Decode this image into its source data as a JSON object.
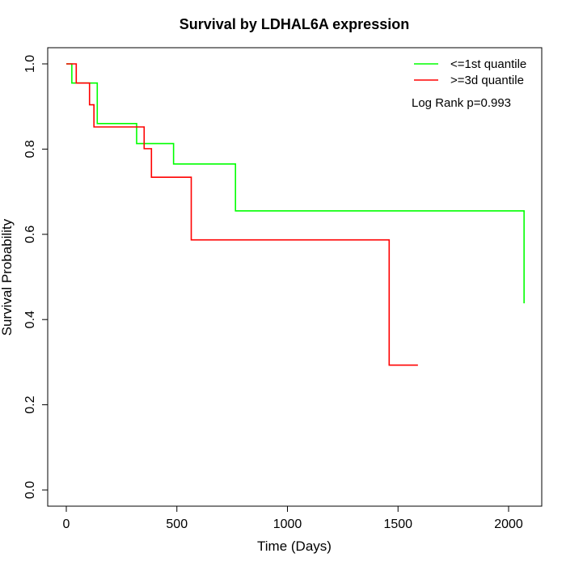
{
  "chart_data": {
    "type": "line",
    "step": true,
    "title": "Survival by LDHAL6A expression",
    "xlabel": "Time (Days)",
    "ylabel": "Survival Probability",
    "xlim": [
      0,
      2070
    ],
    "ylim": [
      0,
      1.0
    ],
    "xticks": [
      "0",
      "500",
      "1000",
      "1500",
      "2000"
    ],
    "yticks": [
      "0.0",
      "0.2",
      "0.4",
      "0.6",
      "0.8",
      "1.0"
    ],
    "legend_position": "top-right",
    "annotation": "Log Rank p=0.993",
    "series": [
      {
        "name": "<=1st quantile",
        "color": "#00ff00",
        "x": [
          0,
          25,
          135,
          140,
          305,
          318,
          485,
          765,
          2070
        ],
        "y": [
          1.0,
          0.955,
          0.955,
          0.86,
          0.86,
          0.813,
          0.765,
          0.655,
          0.438
        ]
      },
      {
        "name": ">=3d quantile",
        "color": "#ff0000",
        "x": [
          0,
          45,
          105,
          125,
          352,
          385,
          565,
          1460,
          1590
        ],
        "y": [
          1.0,
          0.955,
          0.904,
          0.852,
          0.801,
          0.734,
          0.587,
          0.293,
          0.293
        ]
      }
    ]
  }
}
